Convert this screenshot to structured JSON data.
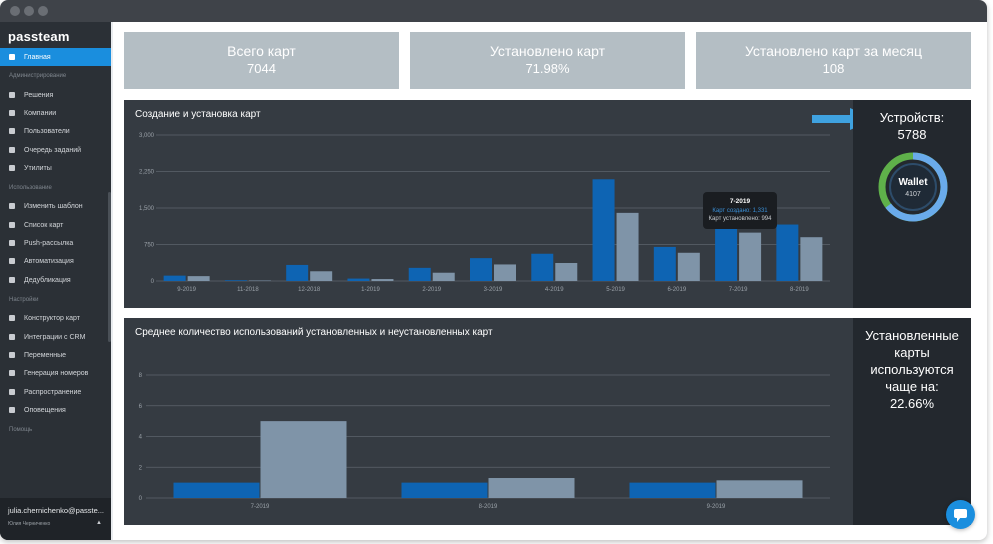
{
  "app": {
    "logo": "passteam"
  },
  "sidebar": {
    "active_label": "Главная",
    "sections": {
      "admin": "Администрирование",
      "usage": "Использование",
      "settings": "Настройки",
      "help": "Помощь"
    },
    "items": [
      {
        "label": "Решения",
        "icon": "briefcase-icon"
      },
      {
        "label": "Компании",
        "icon": "building-icon"
      },
      {
        "label": "Пользователи",
        "icon": "users-icon"
      },
      {
        "label": "Очередь заданий",
        "icon": "list-icon"
      },
      {
        "label": "Утилиты",
        "icon": "gear-icon"
      },
      {
        "label": "Изменить шаблон",
        "icon": "edit-icon"
      },
      {
        "label": "Список карт",
        "icon": "list-icon"
      },
      {
        "label": "Push-рассылка",
        "icon": "megaphone-icon"
      },
      {
        "label": "Автоматизация",
        "icon": "clock-icon"
      },
      {
        "label": "Дедубликация",
        "icon": "copy-icon"
      },
      {
        "label": "Конструктор карт",
        "icon": "edit-icon"
      },
      {
        "label": "Интеграции с CRM",
        "icon": "sitemap-icon"
      },
      {
        "label": "Переменные",
        "icon": "list-icon"
      },
      {
        "label": "Генерация номеров",
        "icon": "grid-icon"
      },
      {
        "label": "Распространение",
        "icon": "bell-icon"
      },
      {
        "label": "Оповещения",
        "icon": "send-icon"
      }
    ],
    "user": {
      "email": "julia.chernichenko@passte...",
      "name": "Юлия Черниченко"
    }
  },
  "stats": [
    {
      "label": "Всего карт",
      "value": "7044"
    },
    {
      "label": "Установлено карт",
      "value": "71.98%"
    },
    {
      "label": "Установлено карт за месяц",
      "value": "108"
    }
  ],
  "devices": {
    "title": "Устройств:",
    "value": "5788",
    "donut_label": "Wallet",
    "donut_value": "4107",
    "colors": {
      "blue": "#6aabeb",
      "green": "#5fb04a"
    }
  },
  "tooltip": {
    "title": "7-2019",
    "line1": "Карт создано: 1,331",
    "line2": "Карт установлено: 994"
  },
  "panel2_side": {
    "line1": "Установленные",
    "line2": "карты",
    "line3": "используются",
    "line4": "чаще на:",
    "line5": "22.66%"
  },
  "colors": {
    "accent": "#1a8ede",
    "series_blue": "#0e64b3",
    "series_gray": "#7f94a8"
  },
  "chart_data": [
    {
      "type": "bar",
      "title": "Создание и установка карт",
      "categories": [
        "9-2019",
        "11-2018",
        "12-2018",
        "1-2019",
        "2-2019",
        "3-2019",
        "4-2019",
        "5-2019",
        "6-2019",
        "7-2019",
        "8-2019"
      ],
      "yticks": [
        "0",
        "750",
        "1,500",
        "2,250",
        "3,000"
      ],
      "ylim": [
        0,
        3000
      ],
      "grid": true,
      "series": [
        {
          "values": [
            110,
            15,
            330,
            50,
            270,
            470,
            560,
            2090,
            700,
            1331,
            1160
          ],
          "color": "#0e64b3"
        },
        {
          "values": [
            100,
            10,
            200,
            40,
            170,
            340,
            370,
            1400,
            580,
            994,
            900
          ],
          "color": "#7f94a8"
        }
      ]
    },
    {
      "type": "bar",
      "title": "Среднее количество использований установленных и неустановленных карт",
      "categories": [
        "7-2019",
        "8-2019",
        "9-2019"
      ],
      "yticks": [
        "0",
        "2",
        "4",
        "6",
        "8"
      ],
      "ylim": [
        0,
        8
      ],
      "grid": true,
      "series": [
        {
          "values": [
            1.0,
            1.0,
            1.0
          ],
          "color": "#0e64b3"
        },
        {
          "values": [
            5.0,
            1.3,
            1.15
          ],
          "color": "#7f94a8"
        }
      ]
    }
  ]
}
